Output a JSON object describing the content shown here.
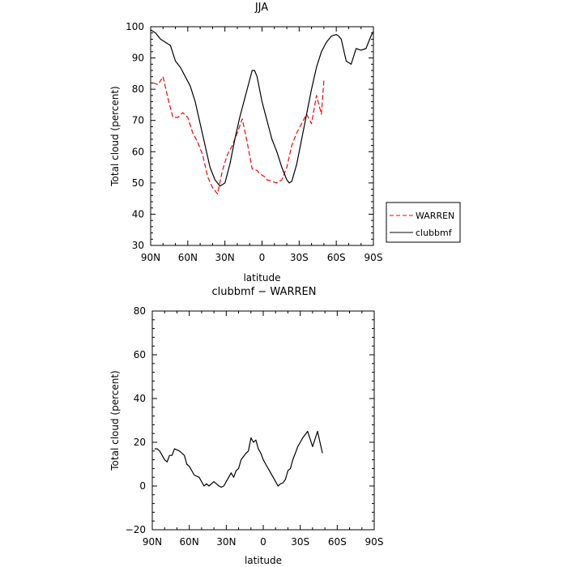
{
  "chart_data": [
    {
      "type": "line",
      "title": "JJA",
      "xlabel": "latitude",
      "ylabel": "Total cloud (percent)",
      "xlim": [
        90,
        -90
      ],
      "ylim": [
        30,
        100
      ],
      "xticks": [
        90,
        60,
        30,
        0,
        -30,
        -60,
        -90
      ],
      "xtick_labels": [
        "90N",
        "60N",
        "30N",
        "0",
        "30S",
        "60S",
        "90S"
      ],
      "yticks": [
        30,
        40,
        50,
        60,
        70,
        80,
        90,
        100
      ],
      "ytick_labels": [
        "30",
        "40",
        "50",
        "60",
        "70",
        "80",
        "90",
        "100"
      ],
      "legend": {
        "position": "right"
      },
      "series": [
        {
          "name": "WARREN",
          "color": "#ff0000",
          "dash": "dashed",
          "x": [
            88,
            84,
            80,
            76,
            72,
            68,
            64,
            60,
            56,
            52,
            48,
            44,
            40,
            36,
            32,
            28,
            24,
            20,
            16,
            12,
            8,
            4,
            2,
            0,
            -2,
            -4,
            -8,
            -12,
            -16,
            -20,
            -24,
            -28,
            -32,
            -36,
            -40,
            -44,
            -48,
            -50,
            -52,
            -54,
            -56,
            -58
          ],
          "y": [
            82,
            81.5,
            84,
            77,
            71,
            71,
            72.5,
            71,
            66,
            63,
            59,
            52,
            48.5,
            46.5,
            54,
            59,
            62,
            66,
            70.5,
            63,
            54.5,
            54,
            53,
            52.5,
            52,
            51,
            50.5,
            50,
            51,
            55,
            62,
            66,
            69,
            72,
            69,
            78,
            72,
            83,
            null,
            null,
            null,
            null
          ]
        },
        {
          "name": "clubbmf",
          "color": "#000000",
          "dash": "solid",
          "x": [
            90,
            86,
            82,
            78,
            74,
            70,
            66,
            62,
            58,
            54,
            50,
            46,
            42,
            38,
            34,
            30,
            26,
            22,
            18,
            14,
            10,
            8,
            6,
            4,
            2,
            0,
            -4,
            -8,
            -12,
            -16,
            -20,
            -22,
            -24,
            -28,
            -32,
            -36,
            -40,
            -44,
            -48,
            -52,
            -56,
            -60,
            -62,
            -64,
            -68,
            -72,
            -76,
            -80,
            -84,
            -88,
            -90
          ],
          "y": [
            99,
            98,
            96,
            95,
            94,
            89,
            87,
            84,
            81,
            76,
            69,
            62,
            55,
            51,
            49,
            50,
            56,
            64,
            71,
            77,
            83,
            86,
            86,
            84,
            80,
            76,
            70,
            64,
            60,
            55,
            51,
            50,
            50.5,
            56,
            64,
            72,
            80,
            87,
            92,
            95,
            97,
            97.5,
            97,
            96,
            89,
            88,
            93,
            92.5,
            93,
            97,
            98.5
          ]
        }
      ]
    },
    {
      "type": "line",
      "title": "clubbmf − WARREN",
      "xlabel": "latitude",
      "ylabel": "Total cloud (percent)",
      "xlim": [
        90,
        -90
      ],
      "ylim": [
        -20,
        80
      ],
      "xticks": [
        90,
        60,
        30,
        0,
        -30,
        -60,
        -90
      ],
      "xtick_labels": [
        "90N",
        "60N",
        "30N",
        "0",
        "30S",
        "60S",
        "90S"
      ],
      "yticks": [
        -20,
        0,
        20,
        40,
        60,
        80
      ],
      "ytick_labels": [
        "−20",
        "0",
        "20",
        "40",
        "60",
        "80"
      ],
      "series": [
        {
          "color": "#000000",
          "dash": "solid",
          "x": [
            88,
            86,
            84,
            82,
            80,
            78,
            76,
            74,
            72,
            68,
            64,
            62,
            60,
            56,
            52,
            48,
            46,
            44,
            42,
            40,
            38,
            36,
            34,
            32,
            30,
            28,
            26,
            24,
            22,
            20,
            18,
            14,
            12,
            10,
            8,
            6,
            4,
            2,
            0,
            -2,
            -4,
            -6,
            -8,
            -10,
            -12,
            -14,
            -16,
            -18,
            -20,
            -22,
            -24,
            -26,
            -28,
            -30,
            -32,
            -36,
            -40,
            -44,
            -48,
            -50,
            -52,
            -54,
            -56,
            -58
          ],
          "y": [
            17,
            17,
            16,
            14,
            12,
            11,
            14,
            14,
            17,
            16,
            14,
            10,
            9,
            5,
            4,
            0,
            1,
            0,
            1,
            2,
            1,
            0,
            -0.5,
            0,
            2,
            4,
            6,
            4,
            7,
            8,
            12,
            15,
            16,
            22,
            20,
            21,
            17,
            15,
            12,
            10,
            8,
            6,
            4,
            2,
            0,
            1,
            1.5,
            3,
            7,
            8,
            12,
            15,
            18,
            20,
            22,
            25,
            18,
            25,
            15,
            null,
            null,
            null,
            null,
            null
          ]
        }
      ]
    }
  ]
}
